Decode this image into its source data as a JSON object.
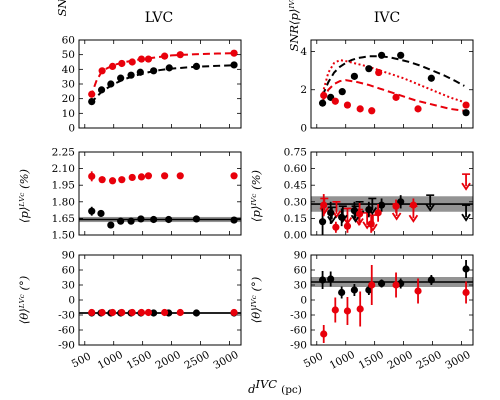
{
  "colors": {
    "black": "#000000",
    "red": "#e8000b",
    "band": "#808080"
  },
  "titles": [
    "LVC",
    "IVC"
  ],
  "xlabel": "d",
  "xlabel_sup": "IVC",
  "xlabel_unit": "(pc)",
  "ylabels": {
    "snr_lvc": "SNR⟨p⟩ᴸⱽᶜ",
    "snr_ivc": "SNR⟨p⟩ᴵⱽᶜ",
    "p_lvc": "⟨p⟩ᴸⱽᶜ (%)",
    "p_ivc": "⟨p⟩ᴵⱽᶜ (%)",
    "theta_lvc": "⟨θ⟩ᴸⱽᶜ (°)",
    "theta_ivc": "⟨θ⟩ᴵⱽᶜ (°)"
  },
  "chart_data": [
    {
      "id": "snr_lvc",
      "type": "scatter",
      "xlim": [
        400,
        3200
      ],
      "ylim": [
        0,
        60
      ],
      "xticks": [
        500,
        1000,
        1500,
        2000,
        2500,
        3000
      ],
      "yticks": [
        0,
        10,
        20,
        30,
        40,
        50,
        60
      ],
      "series": [
        {
          "color": "black",
          "x": [
            620,
            790,
            950,
            1120,
            1300,
            1460,
            1690,
            1960,
            2430,
            3080
          ],
          "y": [
            18,
            26,
            30,
            34,
            36,
            38,
            39,
            41,
            42,
            43
          ]
        },
        {
          "color": "red",
          "x": [
            620,
            800,
            980,
            1140,
            1320,
            1480,
            1600,
            1880,
            2150,
            3080
          ],
          "y": [
            23,
            39,
            42,
            44,
            45,
            47,
            47,
            49,
            50,
            51
          ]
        }
      ],
      "curves": [
        {
          "color": "black",
          "style": "dashed",
          "x": [
            600,
            800,
            1000,
            1200,
            1400,
            1600,
            1800,
            2000,
            2400,
            2800,
            3100
          ],
          "y": [
            17,
            25,
            30,
            33.5,
            36,
            38,
            39.5,
            40.5,
            41.7,
            42.4,
            42.8
          ]
        },
        {
          "color": "red",
          "style": "dashed",
          "x": [
            600,
            700,
            800,
            1000,
            1200,
            1400,
            1600,
            1800,
            2000,
            2400,
            2800,
            3100
          ],
          "y": [
            21,
            32,
            39,
            43,
            45,
            46.5,
            47.5,
            48.5,
            49.5,
            50.3,
            50.8,
            51
          ]
        }
      ]
    },
    {
      "id": "snr_ivc",
      "type": "scatter",
      "xlim": [
        400,
        3200
      ],
      "ylim": [
        0,
        4.6
      ],
      "xticks": [
        500,
        1000,
        1500,
        2000,
        2500,
        3000
      ],
      "yticks": [
        0,
        2,
        4
      ],
      "series": [
        {
          "color": "black",
          "x": [
            600,
            740,
            940,
            1150,
            1400,
            1620,
            1950,
            2480,
            3080
          ],
          "y": [
            1.3,
            1.6,
            1.9,
            2.7,
            3.1,
            3.8,
            3.8,
            2.6,
            0.8
          ]
        },
        {
          "color": "red",
          "x": [
            620,
            820,
            1030,
            1250,
            1450,
            1570,
            1870,
            2250,
            3080
          ],
          "y": [
            1.7,
            1.4,
            1.2,
            1.0,
            0.9,
            2.9,
            1.6,
            1.0,
            1.2
          ]
        }
      ],
      "curves": [
        {
          "color": "black",
          "style": "dashed",
          "x": [
            600,
            700,
            800,
            900,
            1000,
            1100,
            1200,
            1300,
            1400,
            1500,
            1600,
            1750,
            1900,
            2100,
            2300,
            2500,
            2700,
            2900,
            3050
          ],
          "y": [
            1.7,
            2.4,
            2.9,
            3.2,
            3.4,
            3.55,
            3.65,
            3.7,
            3.75,
            3.75,
            3.75,
            3.7,
            3.6,
            3.45,
            3.25,
            3.0,
            2.75,
            2.45,
            2.2
          ]
        },
        {
          "color": "red",
          "style": "dotted",
          "x": [
            600,
            700,
            800,
            900,
            1000,
            1200,
            1400,
            1600,
            1800,
            2000,
            2200,
            2400,
            2600,
            2800,
            3050
          ],
          "y": [
            1.8,
            2.9,
            3.4,
            3.55,
            3.5,
            3.35,
            3.2,
            3.0,
            2.8,
            2.6,
            2.35,
            2.1,
            1.85,
            1.6,
            1.35
          ]
        },
        {
          "color": "red",
          "style": "dashed",
          "x": [
            600,
            700,
            800,
            900,
            1000,
            1200,
            1400,
            1600,
            1800,
            2000,
            2200,
            2400,
            2600,
            2800,
            3050
          ],
          "y": [
            1.4,
            2.0,
            2.3,
            2.45,
            2.5,
            2.4,
            2.25,
            2.05,
            1.85,
            1.65,
            1.45,
            1.3,
            1.15,
            1.0,
            0.9
          ]
        }
      ]
    },
    {
      "id": "p_lvc",
      "type": "scatter",
      "xlim": [
        400,
        3200
      ],
      "ylim": [
        1.5,
        2.25
      ],
      "xticks": [
        500,
        1000,
        1500,
        2000,
        2500,
        3000
      ],
      "yticks": [
        1.5,
        1.65,
        1.8,
        1.95,
        2.1,
        2.25
      ],
      "band": {
        "center": 1.64,
        "lo": 1.617,
        "hi": 1.663
      },
      "series": [
        {
          "color": "black",
          "x": [
            620,
            780,
            950,
            1120,
            1300,
            1470,
            1690,
            1950,
            2430,
            3080
          ],
          "y": [
            1.715,
            1.695,
            1.59,
            1.625,
            1.625,
            1.645,
            1.64,
            1.64,
            1.645,
            1.635
          ],
          "err": [
            0.04,
            0.03,
            0.025,
            0.02,
            0.02,
            0.02,
            0.015,
            0.015,
            0.015,
            0.015
          ]
        },
        {
          "color": "red",
          "x": [
            620,
            800,
            980,
            1140,
            1320,
            1480,
            1600,
            1880,
            2150,
            3080
          ],
          "y": [
            2.03,
            2.0,
            1.99,
            2.0,
            2.02,
            2.025,
            2.035,
            2.035,
            2.035,
            2.035
          ],
          "err": [
            0.045,
            0.03,
            0.025,
            0.02,
            0.02,
            0.02,
            0.02,
            0.015,
            0.015,
            0.015
          ]
        }
      ]
    },
    {
      "id": "p_ivc",
      "type": "scatter",
      "xlim": [
        400,
        3200
      ],
      "ylim": [
        0,
        0.75
      ],
      "xticks": [
        500,
        1000,
        1500,
        2000,
        2500,
        3000
      ],
      "yticks": [
        0.0,
        0.15,
        0.3,
        0.45,
        0.6,
        0.75
      ],
      "band": {
        "center": 0.28,
        "lo": 0.21,
        "hi": 0.35
      },
      "series": [
        {
          "color": "black",
          "x": [
            600,
            740,
            930,
            1150,
            1400,
            1620,
            1950
          ],
          "y": [
            0.12,
            0.2,
            0.16,
            0.22,
            0.23,
            0.27,
            0.3
          ],
          "err": [
            0.12,
            0.1,
            0.08,
            0.08,
            0.07,
            0.06,
            0.06
          ]
        },
        {
          "color": "red",
          "x": [
            620,
            830,
            1030,
            1240,
            1440,
            1560,
            1870,
            2170
          ],
          "y": [
            0.27,
            0.07,
            0.08,
            0.19,
            0.1,
            0.2,
            0.26,
            0.27
          ],
          "err": [
            0.1,
            0.05,
            0.06,
            0.1,
            0.08,
            0.08,
            0.06,
            0.06
          ]
        }
      ],
      "upper_limits": [
        {
          "color": "red",
          "x": [
            630,
            840,
            1030,
            1230,
            1370,
            1470,
            1880,
            2170,
            3080
          ],
          "y": [
            0.33,
            0.3,
            0.24,
            0.23,
            0.2,
            0.18,
            0.28,
            0.26,
            0.55
          ]
        },
        {
          "color": "black",
          "x": [
            760,
            950,
            1170,
            1240,
            1460,
            2460,
            3080
          ],
          "y": [
            0.25,
            0.26,
            0.26,
            0.3,
            0.33,
            0.36,
            0.27
          ]
        }
      ]
    },
    {
      "id": "theta_lvc",
      "type": "scatter",
      "xlim": [
        400,
        3200
      ],
      "ylim": [
        -90,
        90
      ],
      "xticks": [
        500,
        1000,
        1500,
        2000,
        2500,
        3000
      ],
      "yticks": [
        -90,
        -60,
        -30,
        0,
        30,
        60,
        90
      ],
      "band": {
        "center": -26,
        "lo": -28,
        "hi": -24
      },
      "series": [
        {
          "color": "black",
          "x": [
            620,
            780,
            950,
            1120,
            1300,
            1470,
            1690,
            1950,
            2430,
            3080
          ],
          "y": [
            -26,
            -26,
            -26,
            -26,
            -26,
            -26,
            -26,
            -26,
            -26,
            -26
          ],
          "err": [
            2,
            2,
            2,
            2,
            2,
            2,
            2,
            2,
            2,
            2
          ]
        },
        {
          "color": "red",
          "x": [
            620,
            800,
            980,
            1140,
            1320,
            1480,
            1600,
            1880,
            2150,
            3080
          ],
          "y": [
            -25,
            -25,
            -25,
            -25,
            -25,
            -25,
            -25,
            -25,
            -25,
            -25
          ],
          "err": [
            2,
            2,
            2,
            2,
            2,
            2,
            2,
            2,
            2,
            2
          ]
        }
      ]
    },
    {
      "id": "theta_ivc",
      "type": "scatter",
      "xlim": [
        400,
        3200
      ],
      "ylim": [
        -90,
        90
      ],
      "xticks": [
        500,
        1000,
        1500,
        2000,
        2500,
        3000
      ],
      "yticks": [
        -90,
        -60,
        -30,
        0,
        30,
        60,
        90
      ],
      "band": {
        "center": 36,
        "lo": 26,
        "hi": 46
      },
      "series": [
        {
          "color": "black",
          "x": [
            600,
            740,
            930,
            1150,
            1400,
            1620,
            1950,
            2480,
            3080
          ],
          "y": [
            40,
            42,
            15,
            20,
            20,
            33,
            33,
            40,
            62
          ],
          "err": [
            18,
            15,
            12,
            12,
            10,
            8,
            10,
            10,
            18
          ]
        },
        {
          "color": "red",
          "x": [
            620,
            820,
            1030,
            1250,
            1450,
            1870,
            2250,
            3080
          ],
          "y": [
            -68,
            -20,
            -22,
            -18,
            30,
            30,
            18,
            15
          ],
          "err": [
            18,
            25,
            28,
            35,
            40,
            25,
            25,
            22
          ]
        }
      ]
    }
  ]
}
